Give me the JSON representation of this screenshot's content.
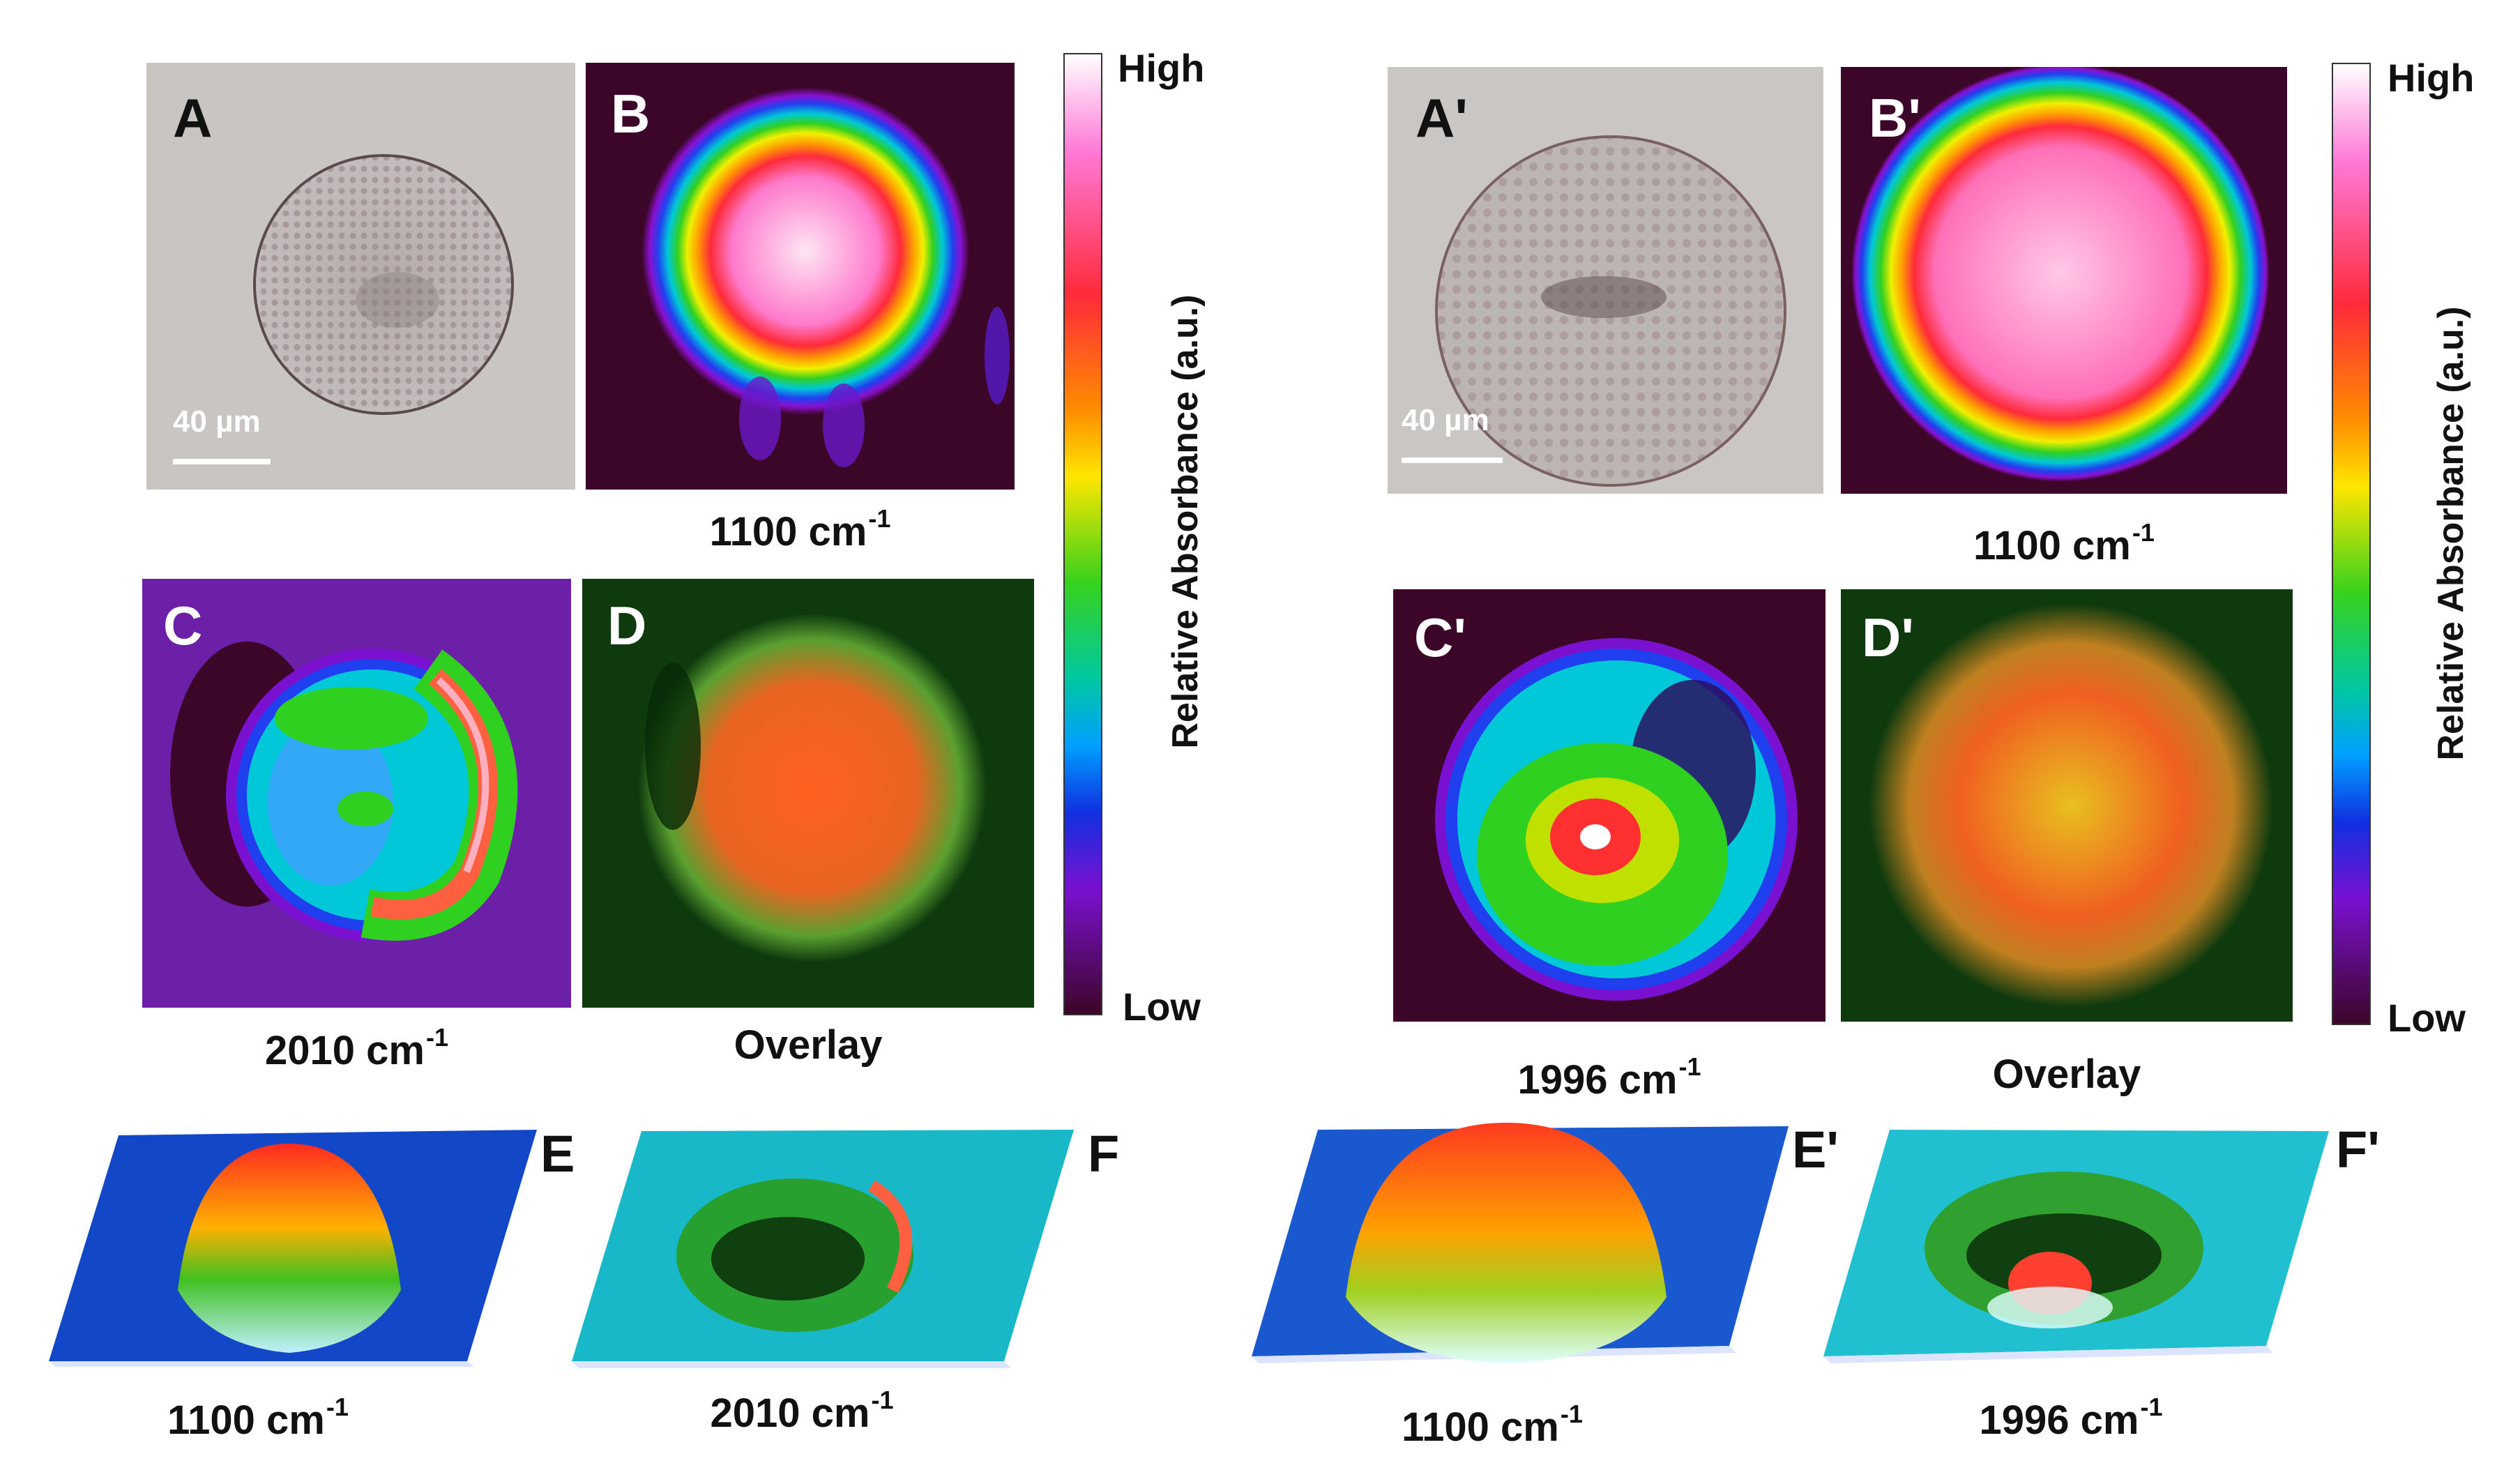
{
  "left": {
    "panel_a": {
      "label": "A",
      "scale_text": "40 µm"
    },
    "panel_b": {
      "label": "B",
      "caption": "1100 cm",
      "caption_sup": "-1"
    },
    "panel_c": {
      "label": "C",
      "caption": "2010 cm",
      "caption_sup": "-1"
    },
    "panel_d": {
      "label": "D",
      "caption": "Overlay"
    },
    "colorbar": {
      "high": "High",
      "low": "Low",
      "axis_label": "Relative Absorbance (a.u.)"
    },
    "panel_e": {
      "label": "E",
      "caption": "1100 cm",
      "caption_sup": "-1"
    },
    "panel_f": {
      "label": "F",
      "caption": "2010 cm",
      "caption_sup": "-1"
    }
  },
  "right": {
    "panel_a": {
      "label": "A'",
      "scale_text": "40 µm"
    },
    "panel_b": {
      "label": "B'",
      "caption": "1100 cm",
      "caption_sup": "-1"
    },
    "panel_c": {
      "label": "C'",
      "caption": "1996 cm",
      "caption_sup": "-1"
    },
    "panel_d": {
      "label": "D'",
      "caption": "Overlay"
    },
    "colorbar": {
      "high": "High",
      "low": "Low",
      "axis_label": "Relative Absorbance (a.u.)"
    },
    "panel_e": {
      "label": "E'",
      "caption": "1100 cm",
      "caption_sup": "-1"
    },
    "panel_f": {
      "label": "F'",
      "caption": "1996 cm",
      "caption_sup": "-1"
    }
  },
  "colors": {
    "ir_background": "#3c0628",
    "micrograph_background": "#c9c6c4",
    "overlay_background": "#0e3a0e"
  }
}
